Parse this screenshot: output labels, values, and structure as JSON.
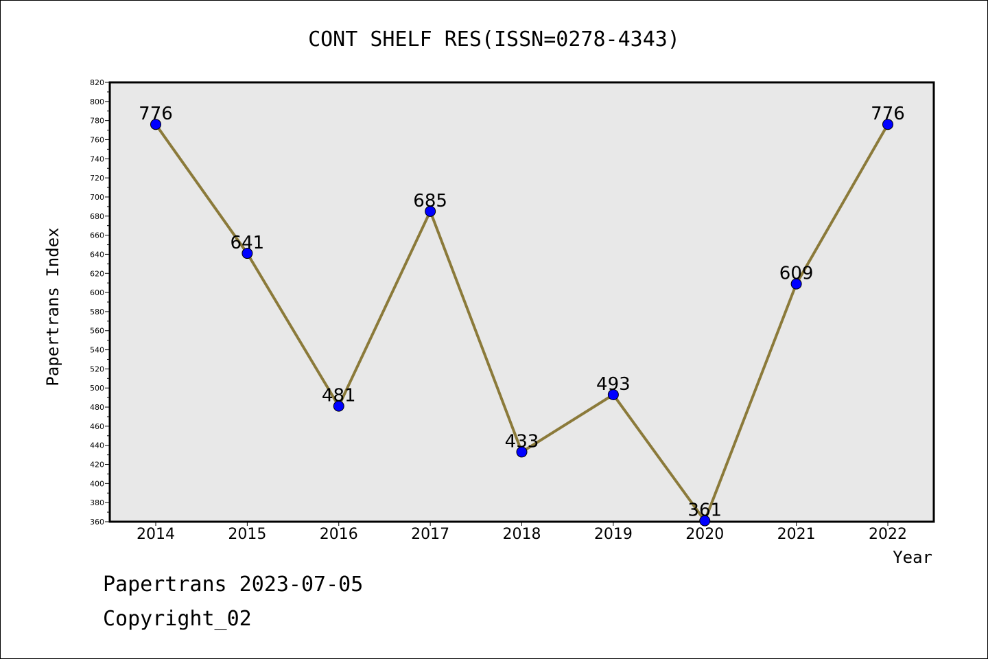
{
  "chart_data": {
    "type": "line",
    "title": "CONT SHELF RES(ISSN=0278-4343)",
    "xlabel": "Year",
    "ylabel": "Papertrans Index",
    "categories": [
      "2014",
      "2015",
      "2016",
      "2017",
      "2018",
      "2019",
      "2020",
      "2021",
      "2022"
    ],
    "values": [
      776,
      641,
      481,
      685,
      433,
      493,
      361,
      609,
      776
    ],
    "data_labels": [
      "776",
      "641",
      "481",
      "685",
      "433",
      "493",
      "361",
      "609",
      "776"
    ],
    "ylim": [
      360,
      820
    ],
    "y_ticks": [
      "360",
      "380",
      "400",
      "420",
      "440",
      "460",
      "480",
      "500",
      "520",
      "540",
      "560",
      "580",
      "600",
      "620",
      "640",
      "660",
      "680",
      "700",
      "720",
      "740",
      "760",
      "780",
      "800",
      "820"
    ],
    "grid": false,
    "colors": {
      "line": "#8B7A3A",
      "marker": "#0000FF",
      "plot_background": "#E8E8E8"
    }
  },
  "footer": {
    "date_text": "Papertrans 2023-07-05",
    "copyright_text": "Copyright_02"
  }
}
